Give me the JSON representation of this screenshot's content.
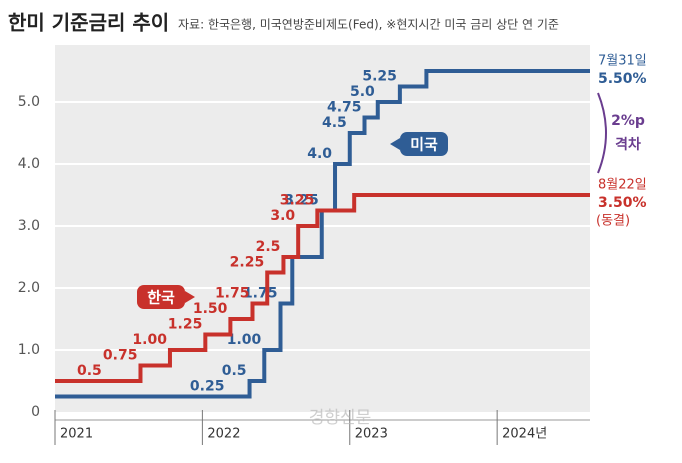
{
  "chart_data": {
    "type": "line",
    "step": true,
    "title": "한미 기준금리 추이",
    "subtitle": "자료: 한국은행, 미국연방준비제도(Fed), ※현지시간 미국 금리 상단 연 기준",
    "xlim": [
      2021,
      2024.63
    ],
    "xticks": [
      2021,
      2022,
      2023,
      {
        "value": 2024,
        "label": "2024년"
      }
    ],
    "ylim": [
      0,
      5.92
    ],
    "yticks": [
      0,
      {
        "value": 1,
        "label": "1.0"
      },
      {
        "value": 2,
        "label": "2.0"
      },
      {
        "value": 3,
        "label": "3.0"
      },
      {
        "value": 4,
        "label": "4.0"
      },
      {
        "value": 5,
        "label": "5.0"
      }
    ],
    "grid": true,
    "series": [
      {
        "name": "미국",
        "color": "#2f5d95",
        "x": [
          2021,
          2022.17,
          2022.32,
          2022.42,
          2022.53,
          2022.61,
          2022.81,
          2022.9,
          2023.0,
          2023.1,
          2023.19,
          2023.34,
          2023.52
        ],
        "values": [
          0.25,
          0.25,
          0.5,
          1.0,
          1.75,
          2.5,
          3.25,
          4.0,
          4.5,
          4.75,
          5.0,
          5.25,
          5.5
        ],
        "value_labels": [
          null,
          "0.25",
          "0.5",
          "1.00",
          "1.75",
          null,
          "3.25",
          "4.0",
          "4.5",
          "4.75",
          "5.0",
          "5.25",
          "5.50%"
        ],
        "end_note": "7월31일"
      },
      {
        "name": "한국",
        "color": "#c8312b",
        "x": [
          2021,
          2021.58,
          2021.78,
          2022.02,
          2022.19,
          2022.34,
          2022.44,
          2022.55,
          2022.65,
          2022.78,
          2023.03
        ],
        "values": [
          0.5,
          0.75,
          1.0,
          1.25,
          1.5,
          1.75,
          2.25,
          2.5,
          3.0,
          3.25,
          3.5
        ],
        "value_labels": [
          "0.5",
          "0.75",
          "1.00",
          "1.25",
          "1.50",
          "1.75",
          "2.25",
          "2.5",
          "3.0",
          "3.25",
          "3.50%"
        ],
        "end_note": "8월22일",
        "end_extra": "(동결)"
      }
    ],
    "gap_label": [
      "2%p",
      "격차"
    ],
    "watermark": "경향신문"
  }
}
